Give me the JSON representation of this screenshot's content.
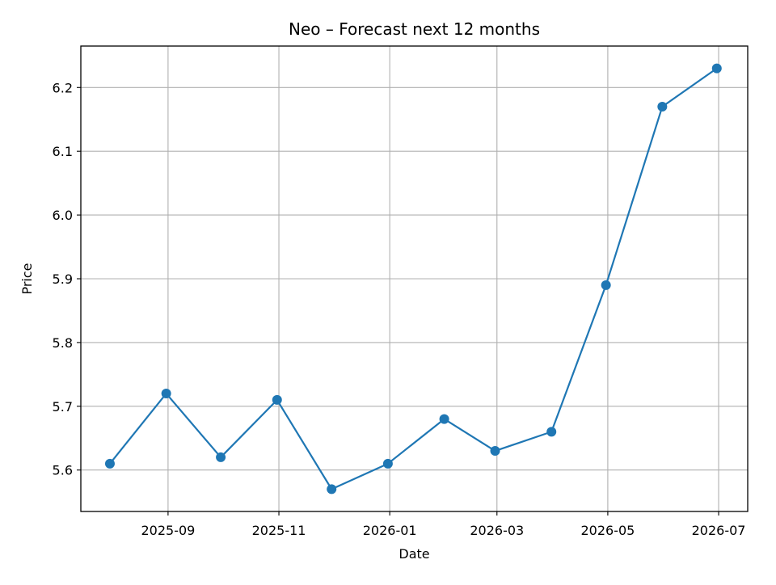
{
  "chart_data": {
    "type": "line",
    "title": "Neo – Forecast next 12 months",
    "xlabel": "Date",
    "ylabel": "Price",
    "x_tick_labels": [
      "2025-09",
      "2025-11",
      "2026-01",
      "2026-03",
      "2026-05",
      "2026-07"
    ],
    "x_tick_dates": [
      "2025-09-01",
      "2025-11-01",
      "2026-01-01",
      "2026-03-01",
      "2026-05-01",
      "2026-07-01"
    ],
    "y_ticks": [
      5.6,
      5.7,
      5.8,
      5.9,
      6.0,
      6.1,
      6.2
    ],
    "y_tick_labels": [
      "5.6",
      "5.7",
      "5.8",
      "5.9",
      "6.0",
      "6.1",
      "6.2"
    ],
    "xlim": [
      "2025-07-15",
      "2026-07-17"
    ],
    "ylim": [
      5.535,
      6.265
    ],
    "grid": true,
    "series": [
      {
        "color": "#1f77b4",
        "marker": "circle",
        "x": [
          "2025-07-31",
          "2025-08-31",
          "2025-09-30",
          "2025-10-31",
          "2025-11-30",
          "2025-12-31",
          "2026-01-31",
          "2026-02-28",
          "2026-03-31",
          "2026-04-30",
          "2026-05-31",
          "2026-06-30"
        ],
        "values": [
          5.61,
          5.72,
          5.62,
          5.71,
          5.57,
          5.61,
          5.68,
          5.63,
          5.66,
          5.89,
          6.17,
          6.23
        ]
      }
    ]
  }
}
